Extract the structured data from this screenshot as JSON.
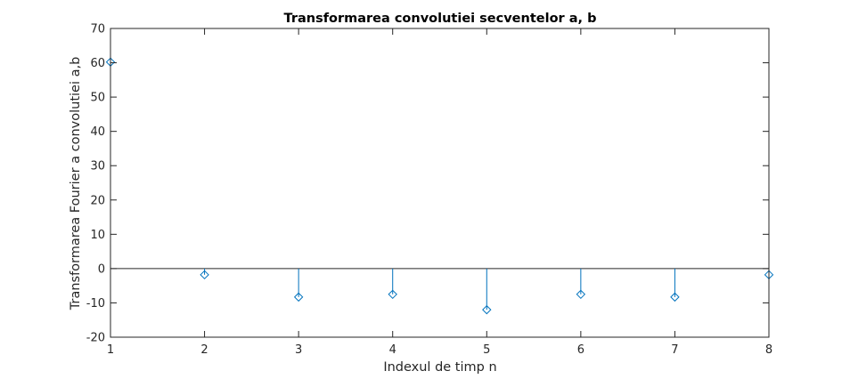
{
  "chart_data": {
    "type": "stem",
    "title": "Transformarea convolutiei secventelor a, b",
    "xlabel": "Indexul de timp n",
    "ylabel": "Transformarea Fourier a convolutiei a,b",
    "xlim": [
      1,
      8
    ],
    "ylim": [
      -20,
      70
    ],
    "x_ticks": [
      1,
      2,
      3,
      4,
      5,
      6,
      7,
      8
    ],
    "y_ticks": [
      -20,
      -10,
      0,
      10,
      20,
      30,
      40,
      50,
      60,
      70
    ],
    "x": [
      1,
      2,
      3,
      4,
      5,
      6,
      7,
      8
    ],
    "y": [
      60.2,
      -1.8,
      -8.3,
      -7.5,
      -12,
      -7.5,
      -8.3,
      -1.8
    ],
    "marker": "diamond",
    "grid": false,
    "color": "#0072BD"
  }
}
